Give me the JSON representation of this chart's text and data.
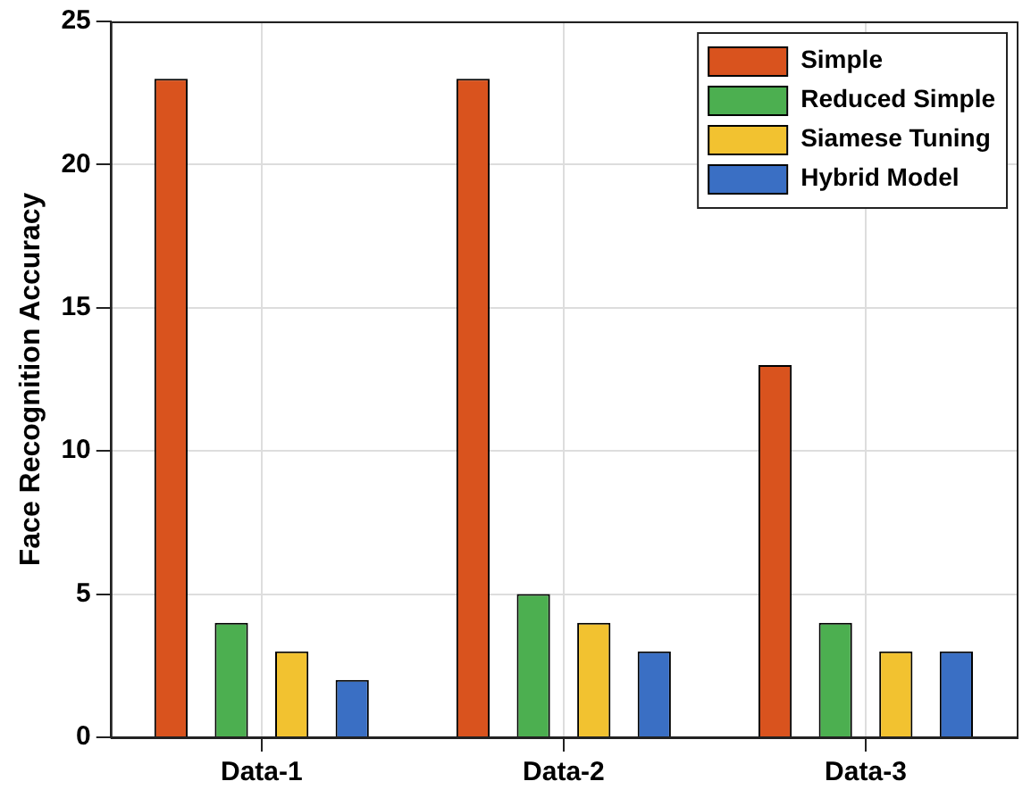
{
  "chart_data": {
    "type": "bar",
    "ylabel": "Face Recognition Accuracy",
    "categories": [
      "Data-1",
      "Data-2",
      "Data-3"
    ],
    "series": [
      {
        "name": "Simple",
        "color": "#d9531e",
        "values": [
          23,
          23,
          13
        ]
      },
      {
        "name": "Reduced Simple",
        "color": "#4caf50",
        "values": [
          4,
          5,
          4
        ]
      },
      {
        "name": "Siamese Tuning",
        "color": "#f2c230",
        "values": [
          3,
          4,
          3
        ]
      },
      {
        "name": "Hybrid Model",
        "color": "#3a6fc4",
        "values": [
          2,
          3,
          3
        ]
      }
    ],
    "ylim": [
      0,
      25
    ],
    "yticks": [
      0,
      5,
      10,
      15,
      20,
      25
    ],
    "grid": true,
    "legend": "top right"
  }
}
